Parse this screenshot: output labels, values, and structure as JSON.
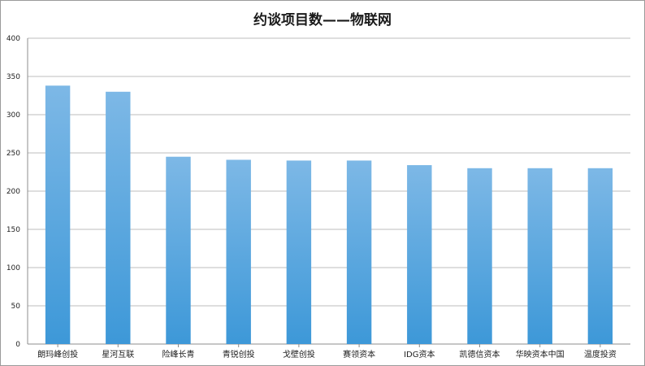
{
  "chart_data": {
    "type": "bar",
    "title": "约谈项目数——物联网",
    "xlabel": "",
    "ylabel": "",
    "categories": [
      "朗玛峰创投",
      "星河互联",
      "险峰长青",
      "青锐创投",
      "戈壁创投",
      "赛领资本",
      "IDG资本",
      "凯德信资本",
      "华映资本中国",
      "温度投资"
    ],
    "values": [
      338,
      330,
      245,
      241,
      240,
      240,
      234,
      230,
      230,
      230
    ],
    "ylim": [
      0,
      400
    ],
    "yticks": [
      0,
      50,
      100,
      150,
      200,
      250,
      300,
      350,
      400
    ],
    "grid": true,
    "legend": "none",
    "colors": {
      "bar_top": "#7db8e6",
      "bar_bottom": "#3d98d8",
      "grid": "#bdbdbd"
    }
  }
}
